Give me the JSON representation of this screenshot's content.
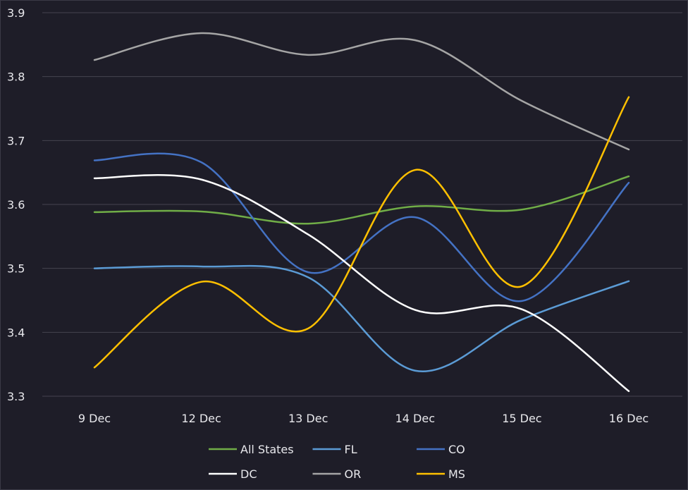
{
  "chart_data": {
    "type": "line",
    "title": "",
    "xlabel": "",
    "ylabel": "",
    "categories": [
      "9 Dec",
      "12 Dec",
      "13 Dec",
      "14 Dec",
      "15 Dec",
      "16 Dec"
    ],
    "ylim": [
      3.3,
      3.9
    ],
    "yticks": [
      "3.3",
      "3.4",
      "3.5",
      "3.6",
      "3.7",
      "3.8",
      "3.9"
    ],
    "grid": true,
    "legend_position": "bottom",
    "series": [
      {
        "name": "All States",
        "color": "#70ad47",
        "values": [
          3.588,
          3.589,
          3.57,
          3.597,
          3.592,
          3.644
        ]
      },
      {
        "name": "FL",
        "color": "#5b9bd5",
        "values": [
          3.5,
          3.503,
          3.486,
          3.34,
          3.42,
          3.48
        ]
      },
      {
        "name": "CO",
        "color": "#4472c4",
        "values": [
          3.669,
          3.666,
          3.494,
          3.58,
          3.449,
          3.634
        ]
      },
      {
        "name": "DC",
        "color": "#ffffff",
        "values": [
          3.641,
          3.639,
          3.553,
          3.435,
          3.436,
          3.308
        ]
      },
      {
        "name": "OR",
        "color": "#a5a5a5",
        "values": [
          3.826,
          3.868,
          3.834,
          3.857,
          3.762,
          3.686
        ]
      },
      {
        "name": "MS",
        "color": "#ffc000",
        "values": [
          3.345,
          3.479,
          3.406,
          3.654,
          3.472,
          3.768
        ]
      }
    ]
  }
}
